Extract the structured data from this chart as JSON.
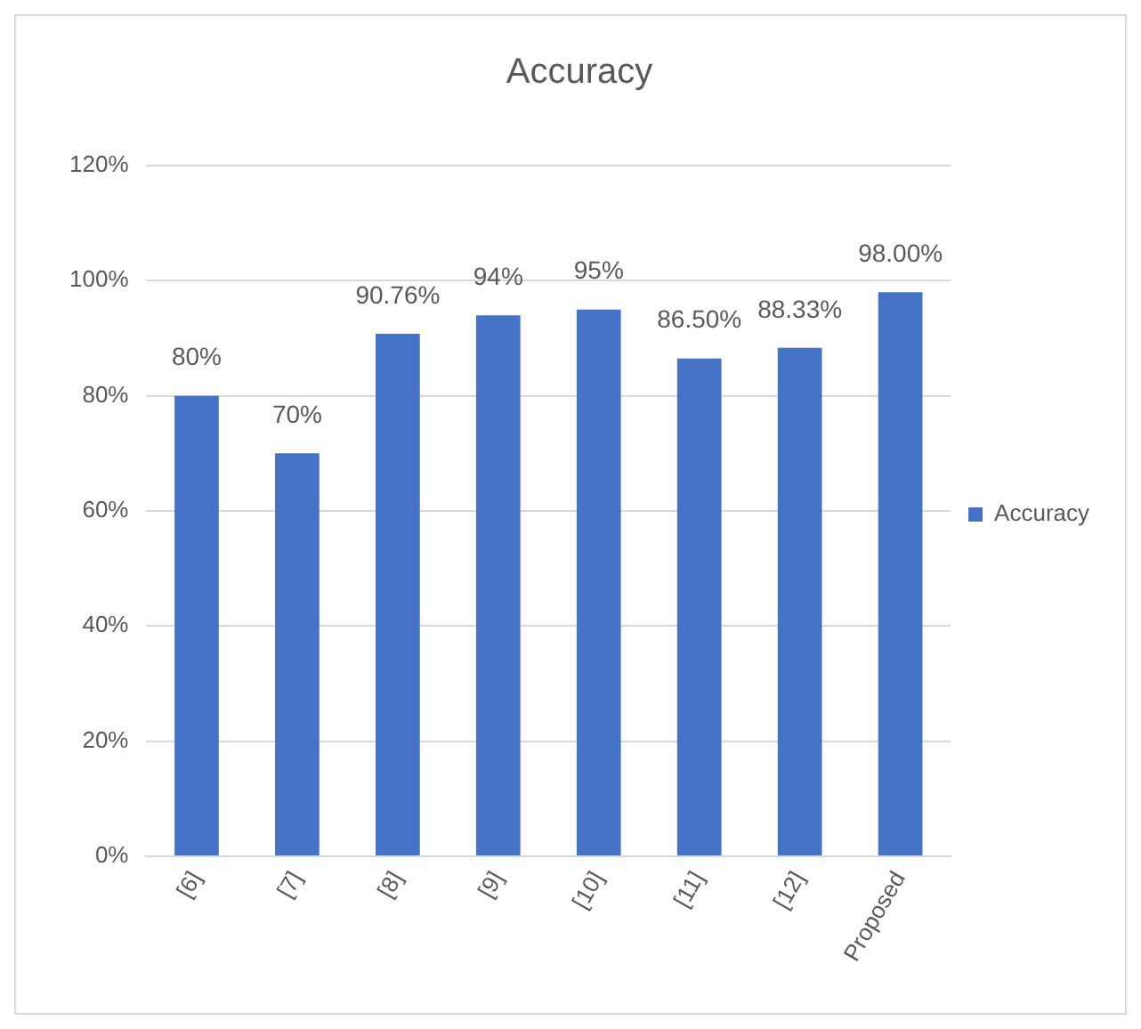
{
  "chart_data": {
    "type": "bar",
    "title": "Accuracy",
    "categories": [
      "[6]",
      "[7]",
      "[8]",
      "[9]",
      "[10]",
      "[11]",
      "[12]",
      "Proposed"
    ],
    "series": [
      {
        "name": "Accuracy",
        "color": "#4472c4",
        "values": [
          80,
          70,
          90.76,
          94,
          95,
          86.5,
          88.33,
          98
        ],
        "value_labels": [
          "80%",
          "70%",
          "90.76%",
          "94%",
          "95%",
          "86.50%",
          "88.33%",
          "98.00%"
        ]
      }
    ],
    "ylim": [
      0,
      120
    ],
    "yticks": [
      {
        "value": 0,
        "label": "0%"
      },
      {
        "value": 20,
        "label": "20%"
      },
      {
        "value": 40,
        "label": "40%"
      },
      {
        "value": 60,
        "label": "60%"
      },
      {
        "value": 80,
        "label": "80%"
      },
      {
        "value": 100,
        "label": "100%"
      },
      {
        "value": 120,
        "label": "120%"
      }
    ],
    "grid": "y",
    "legend": "right"
  }
}
